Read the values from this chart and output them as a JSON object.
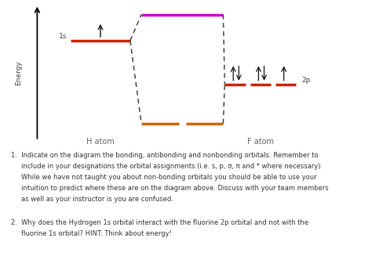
{
  "bg_color": "#ffffff",
  "energy_label": "Energy",
  "h_atom_label": "H atom",
  "f_atom_label": "F atom",
  "h_label": "1s",
  "f_label": "2p",
  "bonding_color": "#cc6600",
  "antibonding_color": "#cc00cc",
  "dashed_color": "#444444",
  "orbital_color": "#cc2200",
  "arrow_color": "#111111",
  "text_color": "#555555",
  "q1_line1": "1.  Indicate on the diagram the bonding, antibonding and nonbonding orbitals. Remember to",
  "q1_line2": "     include in your designations the orbital assignments (i.e. s, p, σ, π and * where necessary).",
  "q1_line3": "     While we have not taught you about non-bonding orbitals you should be able to use your",
  "q1_line4": "     intuition to predict where these are on the diagram above. Discuss with your team members",
  "q1_line5": "     as well as your instructor is you are confused.",
  "q2_line1": "2.  Why does the Hydrogen 1s orbital interact with the fluorine 2p orbital and not with the",
  "q2_line2": "     fluorine 1s orbital? HINT: Think about energy!"
}
